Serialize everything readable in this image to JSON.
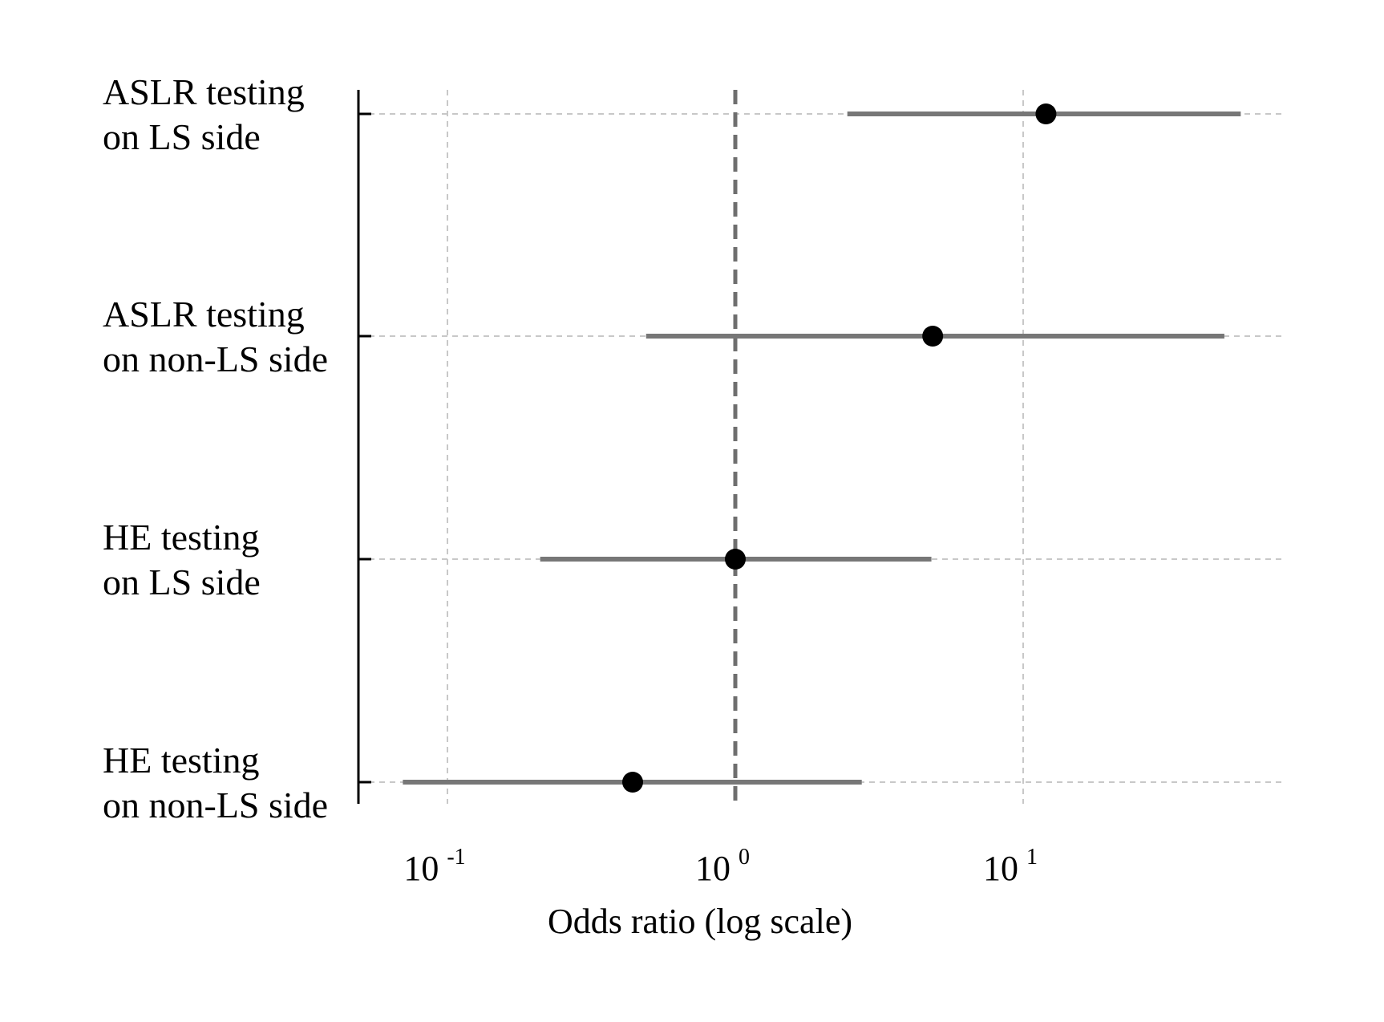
{
  "chart_data": {
    "type": "forest",
    "xscale": "log",
    "xlabel": "Odds ratio (log scale)",
    "xlim": [
      0.056,
      85
    ],
    "reference_line": 1,
    "grid": true,
    "x_ticks": [
      {
        "value": 0.1,
        "base": "10",
        "exp": "-1"
      },
      {
        "value": 1,
        "base": "10",
        "exp": "0"
      },
      {
        "value": 10,
        "base": "10",
        "exp": "1"
      }
    ],
    "rows": [
      {
        "label_lines": [
          "ASLR testing",
          "on LS side"
        ],
        "estimate": 12.0,
        "lower": 2.45,
        "upper": 57.0
      },
      {
        "label_lines": [
          "ASLR testing",
          "on non-LS side"
        ],
        "estimate": 4.85,
        "lower": 0.49,
        "upper": 50.0
      },
      {
        "label_lines": [
          "HE testing",
          "on LS side"
        ],
        "estimate": 1.0,
        "lower": 0.21,
        "upper": 4.8
      },
      {
        "label_lines": [
          "HE testing",
          "on non-LS side"
        ],
        "estimate": 0.44,
        "lower": 0.07,
        "upper": 2.75
      }
    ],
    "colors": {
      "ci": "#777777",
      "point": "#000000",
      "grid": "#c8c8c8",
      "ref": "#6e6e6e",
      "axis": "#000000"
    }
  }
}
